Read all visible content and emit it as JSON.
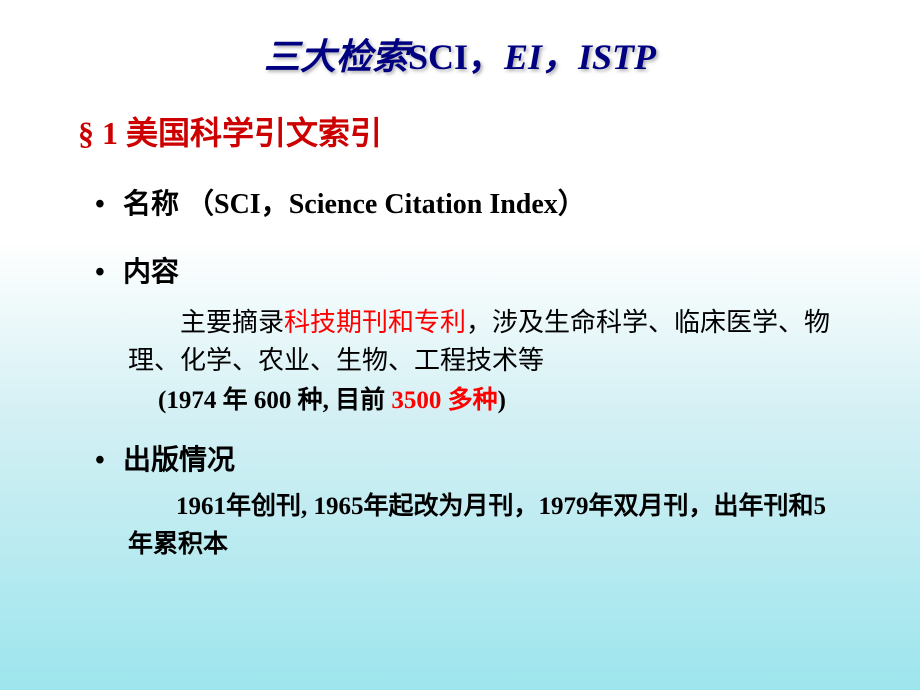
{
  "title": {
    "prefix": "三大检索",
    "sci": "SCI，",
    "rest": "EI，ISTP"
  },
  "section_header": "§ 1 美国科学引文索引",
  "bullet1": {
    "marker": "•",
    "text": "名称 （SCI，Science Citation Index）"
  },
  "bullet2": {
    "marker": "•",
    "text": "内容"
  },
  "content1": {
    "p1_a": "主要摘录",
    "p1_red": "科技期刊和专利",
    "p1_b": "，涉及生命科学、临床医学、物理、化学、农业、生物、工程技术等"
  },
  "content2": {
    "a": "(1974 年 600 种, 目前 ",
    "red": "3500 多种",
    "b": ")"
  },
  "bullet3": {
    "marker": "•",
    "text": "出版情况"
  },
  "content3": "1961年创刊, 1965年起改为月刊，1979年双月刊，出年刊和5年累积本"
}
